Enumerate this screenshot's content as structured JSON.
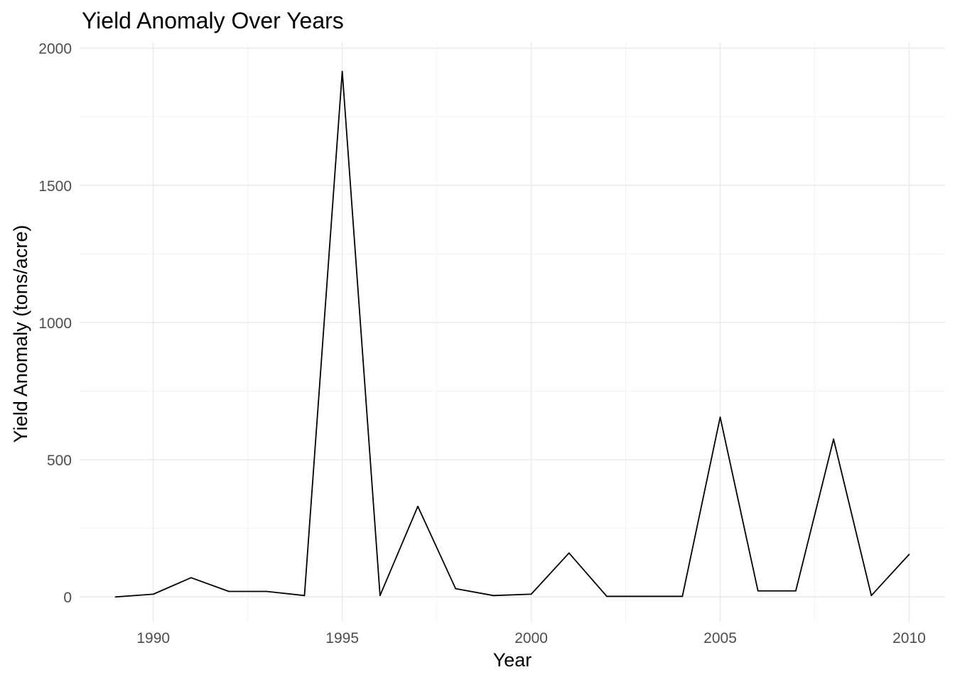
{
  "chart_data": {
    "type": "line",
    "title": "Yield Anomaly Over Years",
    "xlabel": "Year",
    "ylabel": "Yield Anomaly (tons/acre)",
    "xlim": [
      1988.05,
      2010.95
    ],
    "ylim": [
      -90,
      2020
    ],
    "x_ticks": [
      1990,
      1995,
      2000,
      2005,
      2010
    ],
    "y_ticks": [
      0,
      500,
      1000,
      1500,
      2000
    ],
    "x_minor_ticks": [
      1992.5,
      1997.5,
      2002.5,
      2007.5
    ],
    "y_minor_ticks": [
      250,
      750,
      1250,
      1750
    ],
    "grid": true,
    "line_color": "#000000",
    "x": [
      1989,
      1990,
      1991,
      1992,
      1993,
      1994,
      1995,
      1996,
      1997,
      1998,
      1999,
      2000,
      2001,
      2002,
      2003,
      2004,
      2005,
      2006,
      2007,
      2008,
      2009,
      2010
    ],
    "values": [
      0,
      10,
      70,
      20,
      20,
      5,
      1915,
      5,
      330,
      30,
      5,
      10,
      160,
      2,
      2,
      2,
      655,
      22,
      22,
      575,
      5,
      155
    ]
  }
}
